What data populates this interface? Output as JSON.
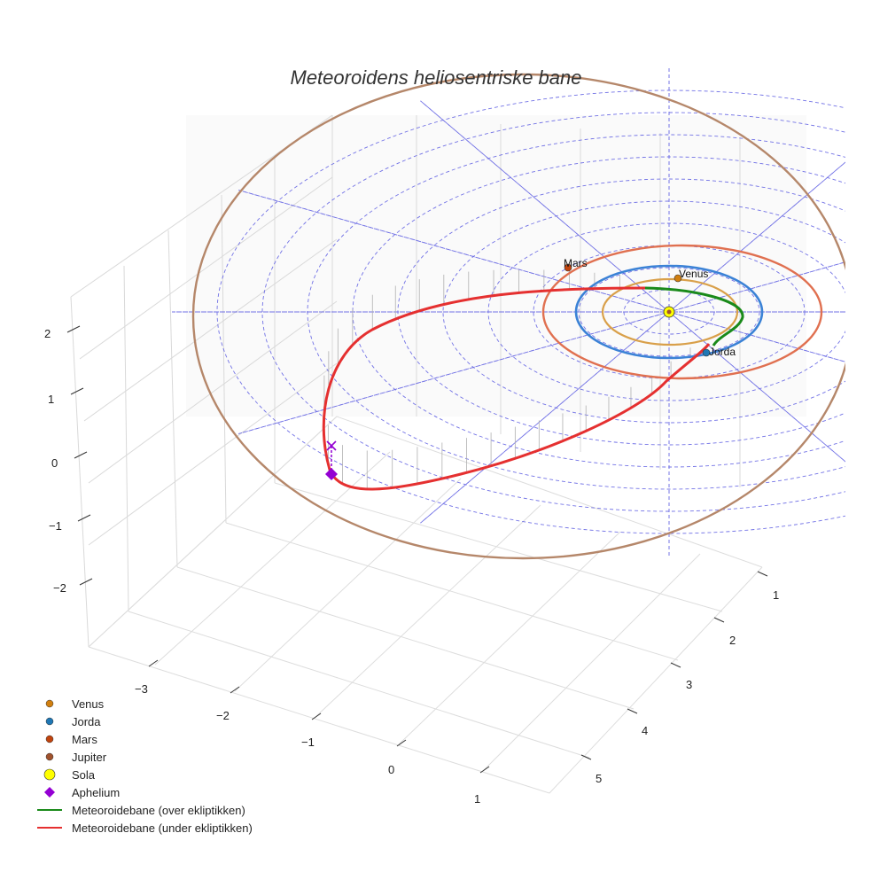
{
  "chart_data": {
    "type": "scatter",
    "projection": "3d",
    "title": "Meteoroidens heliosentriske bane",
    "axes": {
      "x_ticks": [
        "−3",
        "−2",
        "−1",
        "0",
        "1"
      ],
      "y_ticks": [
        "1",
        "2",
        "3",
        "4",
        "5"
      ],
      "z_ticks": [
        "2",
        "1",
        "0",
        "−1",
        "−2"
      ],
      "xlim": [
        -3.6,
        1.6
      ],
      "ylim": [
        0.5,
        5.5
      ],
      "zlim": [
        -2.6,
        2.6
      ]
    },
    "bodies": [
      {
        "name": "Venus",
        "color": "#d17f0f",
        "label": "Venus",
        "orbit_radius_au": 0.72,
        "orbit_color": "#d9a04a"
      },
      {
        "name": "Jorda",
        "color": "#1f77b4",
        "label": "Jorda",
        "orbit_radius_au": 1.0,
        "orbit_color": "#3b82d6"
      },
      {
        "name": "Mars",
        "color": "#c1440e",
        "label": "Mars",
        "orbit_radius_au": 1.52,
        "orbit_color": "#e07050"
      },
      {
        "name": "Jupiter",
        "color": "#a0522d",
        "label": "",
        "orbit_radius_au": 5.2,
        "orbit_color": "#b5876a"
      },
      {
        "name": "Sola",
        "color": "#ffff00"
      }
    ],
    "meteoroid_orbit": {
      "perihelion_au": 0.88,
      "aphelion_au": 3.9,
      "series": [
        {
          "name": "Meteoroidebane (over ekliptikken)",
          "color": "#1a8a1a"
        },
        {
          "name": "Meteoroidebane (under ekliptikken)",
          "color": "#e53030"
        }
      ],
      "aphelion_marker": {
        "name": "Aphelium",
        "color": "#9400d3"
      }
    },
    "ecliptic_grid_rings_au": [
      0.5,
      1,
      1.5,
      2,
      2.5,
      3,
      3.5,
      4,
      4.5,
      5
    ],
    "legend": [
      {
        "label": "Venus",
        "marker": "circle",
        "color": "#d17f0f"
      },
      {
        "label": "Jorda",
        "marker": "circle",
        "color": "#1f77b4"
      },
      {
        "label": "Mars",
        "marker": "circle",
        "color": "#c1440e"
      },
      {
        "label": "Jupiter",
        "marker": "circle",
        "color": "#a0522d"
      },
      {
        "label": "Sola",
        "marker": "circle-large",
        "color": "#ffff00"
      },
      {
        "label": "Aphelium",
        "marker": "diamond",
        "color": "#9400d3"
      },
      {
        "label": "Meteoroidebane (over ekliptikken)",
        "marker": "line",
        "color": "#1a8a1a"
      },
      {
        "label": "Meteoroidebane (under ekliptikken)",
        "marker": "line",
        "color": "#e53030"
      }
    ],
    "legend_position": "bottom-left"
  }
}
